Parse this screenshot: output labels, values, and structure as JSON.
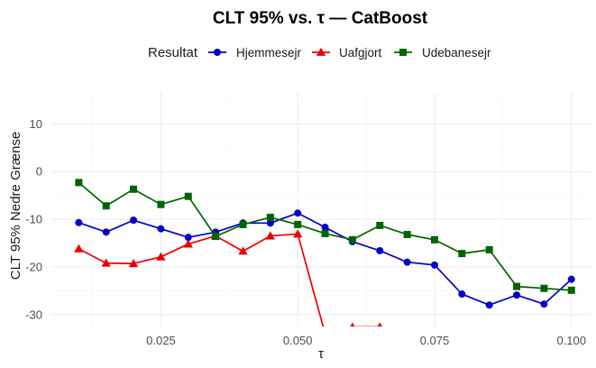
{
  "chart_data": {
    "type": "line",
    "title": "CLT 95% vs. τ — CatBoost",
    "xlabel": "τ",
    "ylabel": "CLT 95% Nedre Grænse",
    "xlim": [
      0.005,
      0.1035
    ],
    "ylim": [
      -32.5,
      16.5
    ],
    "x_ticks": [
      0.025,
      0.05,
      0.075,
      0.1
    ],
    "x_tick_labels": [
      "0.025",
      "0.050",
      "0.075",
      "0.100"
    ],
    "y_ticks": [
      -30,
      -20,
      -10,
      0,
      10
    ],
    "y_tick_labels": [
      "-30",
      "-20",
      "-10",
      "0",
      "10"
    ],
    "grid": true,
    "legend": {
      "title": "Resultat",
      "position": "top"
    },
    "series": [
      {
        "name": "Hjemmesejr",
        "color": "#0000cc",
        "marker": "circle",
        "x": [
          0.01,
          0.015,
          0.02,
          0.025,
          0.03,
          0.035,
          0.04,
          0.045,
          0.05,
          0.055,
          0.06,
          0.065,
          0.07,
          0.075,
          0.08,
          0.085,
          0.09,
          0.095,
          0.1
        ],
        "y": [
          -10.7,
          -12.7,
          -10.2,
          -12.0,
          -13.8,
          -12.7,
          -10.8,
          -10.8,
          -8.7,
          -11.7,
          -14.7,
          -16.6,
          -19.0,
          -19.6,
          -25.7,
          -28.0,
          -25.9,
          -27.8,
          -22.6
        ]
      },
      {
        "name": "Uafgjort",
        "color": "#ee0000",
        "marker": "triangle",
        "x": [
          0.01,
          0.015,
          0.02,
          0.025,
          0.03,
          0.035,
          0.04,
          0.045,
          0.05,
          0.055,
          0.06,
          0.065
        ],
        "y": [
          -16.2,
          -19.2,
          -19.3,
          -17.9,
          -15.2,
          -13.5,
          -16.7,
          -13.5,
          -13.1,
          -34.0,
          -32.6,
          -32.6
        ]
      },
      {
        "name": "Udebanesejr",
        "color": "#006400",
        "marker": "square",
        "x": [
          0.01,
          0.015,
          0.02,
          0.025,
          0.03,
          0.035,
          0.04,
          0.045,
          0.05,
          0.055,
          0.06,
          0.065,
          0.07,
          0.075,
          0.08,
          0.085,
          0.09,
          0.095,
          0.1
        ],
        "y": [
          -2.3,
          -7.2,
          -3.7,
          -6.9,
          -5.2,
          -13.6,
          -11.1,
          -9.6,
          -11.1,
          -13.0,
          -14.3,
          -11.3,
          -13.2,
          -14.3,
          -17.2,
          -16.4,
          -24.1,
          -24.5,
          -24.9
        ]
      }
    ]
  }
}
